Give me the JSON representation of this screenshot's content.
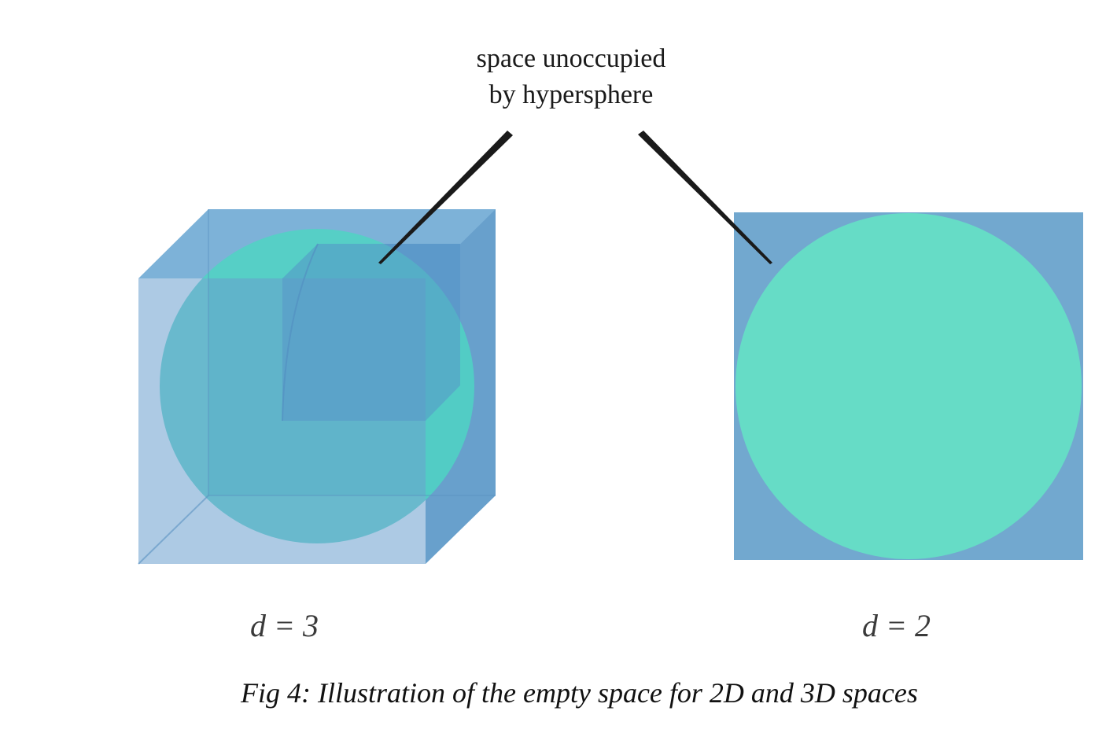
{
  "callout": {
    "line1": "space unoccupied",
    "line2": "by hypersphere"
  },
  "panels": {
    "left": {
      "label": "d = 3"
    },
    "right": {
      "label": "d = 2"
    }
  },
  "caption": "Fig 4: Illustration of the empty space for 2D and 3D spaces",
  "colors": {
    "cube": "#6a9fce",
    "square": "#72a8cf",
    "sphere": "#4fd3c3",
    "circle": "#66dcc6",
    "pointer": "#1a1a1a"
  }
}
